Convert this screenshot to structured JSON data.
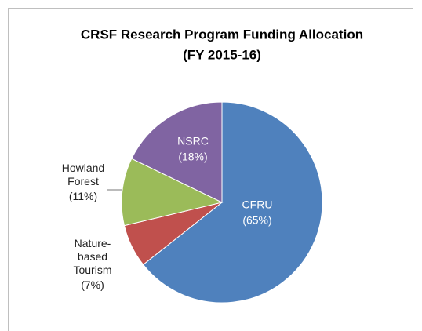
{
  "chart_data": {
    "type": "pie",
    "title": "CRSF Research Program Funding Allocation",
    "subtitle": "(FY 2015-16)",
    "categories": [
      "CFRU",
      "Nature-based Tourism",
      "Howland Forest",
      "NSRC"
    ],
    "values": [
      65,
      7,
      11,
      18
    ],
    "value_labels": [
      "(65%)",
      "(7%)",
      "(11%)",
      "(18%)"
    ],
    "colors": [
      "#4f81bd",
      "#c0504d",
      "#9bbb59",
      "#8064a2"
    ]
  }
}
